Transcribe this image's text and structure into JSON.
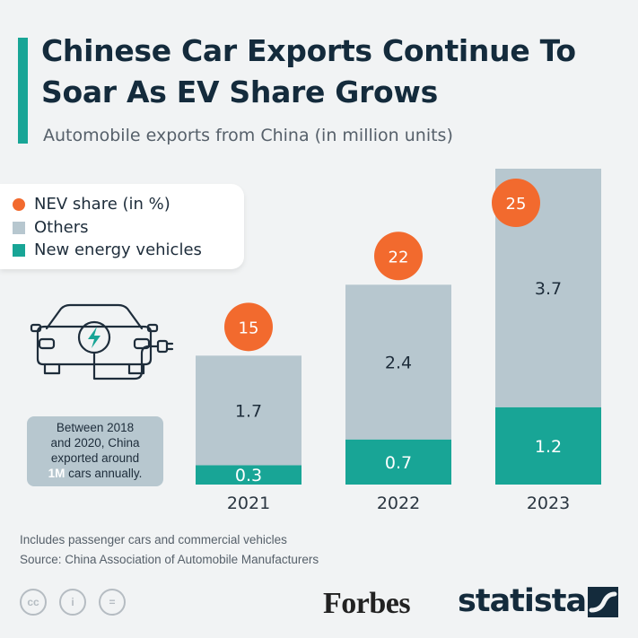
{
  "header": {
    "title": "Chinese Car Exports Continue To Soar As EV Share Grows",
    "subtitle": "Automobile exports from China (in million units)"
  },
  "legend": {
    "items": [
      {
        "label": "NEV share (in %)",
        "color": "#f26a2e",
        "shape": "circle"
      },
      {
        "label": "Others",
        "color": "#b7c7cf",
        "shape": "square"
      },
      {
        "label": "New energy vehicles",
        "color": "#18a596",
        "shape": "square"
      }
    ]
  },
  "note": {
    "line1": "Between 2018",
    "line2": "and 2020, China",
    "line3": "exported around",
    "highlight": "1M",
    "line4_rest": " cars annually."
  },
  "chart_data": {
    "type": "bar",
    "stacked": true,
    "categories": [
      "2021",
      "2022",
      "2023"
    ],
    "series": [
      {
        "name": "New energy vehicles",
        "color": "#18a596",
        "values": [
          0.3,
          0.7,
          1.2
        ]
      },
      {
        "name": "Others",
        "color": "#b7c7cf",
        "values": [
          1.7,
          2.4,
          3.7
        ]
      }
    ],
    "nev_share": {
      "name": "NEV share (in %)",
      "color": "#f26a2e",
      "values": [
        15,
        22,
        25
      ]
    },
    "ylim": [
      0,
      4.9
    ],
    "grid": false,
    "legend_position": "top-left"
  },
  "footer": {
    "note": "Includes passenger cars and commercial vehicles",
    "source": "Source: China Association of Automobile Manufacturers"
  },
  "branding": {
    "forbes": "Forbes",
    "statista": "statista",
    "license_icons": [
      "cc-icon",
      "attribution-icon",
      "no-derivatives-icon"
    ],
    "license_labels": [
      "cc",
      "i",
      "="
    ]
  }
}
